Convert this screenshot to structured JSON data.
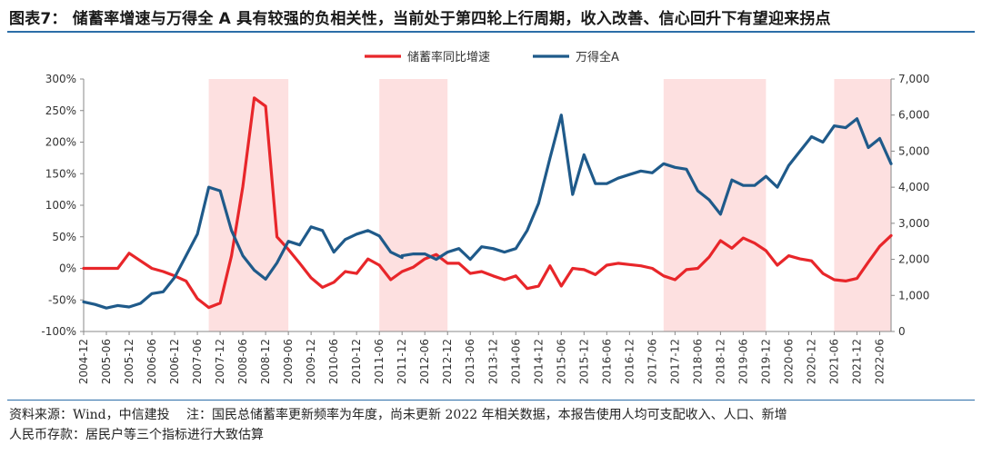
{
  "page": {
    "title": "图表7：  储蓄率增速与万得全 A 具有较强的负相关性，当前处于第四轮上行周期，收入改善、信心回升下有望迎来拐点",
    "source_note_line1": "资料来源：Wind，中信建投　 注：国民总储蓄率更新频率为年度，尚未更新 2022 年相关数据，本报告使用人均可支配收入、人口、新增",
    "source_note_line2": "人民币存款：居民户等三个指标进行大致估算"
  },
  "chart_data": {
    "type": "line",
    "colors": {
      "savings": "#e8262a",
      "wind": "#1f5a8a",
      "band": "#fde0e0"
    },
    "x_tick_labels": [
      "2004-12",
      "2005-06",
      "2005-12",
      "2006-06",
      "2006-12",
      "2007-06",
      "2007-12",
      "2008-06",
      "2008-12",
      "2009-06",
      "2009-12",
      "2010-06",
      "2010-12",
      "2011-06",
      "2011-12",
      "2012-06",
      "2012-12",
      "2013-06",
      "2013-12",
      "2014-06",
      "2014-12",
      "2015-06",
      "2015-12",
      "2016-06",
      "2016-12",
      "2017-06",
      "2017-12",
      "2018-06",
      "2018-12",
      "2019-06",
      "2019-12",
      "2020-06",
      "2020-12",
      "2021-06",
      "2021-12",
      "2022-06"
    ],
    "y_left": {
      "min": -100,
      "max": 300,
      "ticks": [
        "-100%",
        "-50%",
        "0%",
        "50%",
        "100%",
        "150%",
        "200%",
        "250%",
        "300%"
      ]
    },
    "y_right": {
      "min": 0,
      "max": 7000,
      "ticks": [
        "0",
        "1,000",
        "2,000",
        "3,000",
        "4,000",
        "5,000",
        "6,000",
        "7,000"
      ]
    },
    "shaded_periods": [
      {
        "start": "2007-09",
        "end": "2009-06"
      },
      {
        "start": "2011-06",
        "end": "2012-12"
      },
      {
        "start": "2017-09",
        "end": "2019-12"
      },
      {
        "start": "2021-06",
        "end": "2022-09"
      }
    ],
    "series": [
      {
        "name": "储蓄率同比增速",
        "axis": "left",
        "points": [
          [
            "2004-12",
            0
          ],
          [
            "2005-03",
            0
          ],
          [
            "2005-06",
            0
          ],
          [
            "2005-09",
            0
          ],
          [
            "2005-12",
            24
          ],
          [
            "2006-03",
            12
          ],
          [
            "2006-06",
            0
          ],
          [
            "2006-09",
            -5
          ],
          [
            "2006-12",
            -12
          ],
          [
            "2007-03",
            -20
          ],
          [
            "2007-06",
            -48
          ],
          [
            "2007-09",
            -62
          ],
          [
            "2007-12",
            -55
          ],
          [
            "2008-03",
            20
          ],
          [
            "2008-06",
            130
          ],
          [
            "2008-09",
            270
          ],
          [
            "2008-12",
            257
          ],
          [
            "2009-03",
            50
          ],
          [
            "2009-06",
            30
          ],
          [
            "2009-09",
            8
          ],
          [
            "2009-12",
            -15
          ],
          [
            "2010-03",
            -30
          ],
          [
            "2010-06",
            -22
          ],
          [
            "2010-09",
            -5
          ],
          [
            "2010-12",
            -8
          ],
          [
            "2011-03",
            15
          ],
          [
            "2011-06",
            5
          ],
          [
            "2011-09",
            -18
          ],
          [
            "2011-12",
            -5
          ],
          [
            "2012-03",
            2
          ],
          [
            "2012-06",
            15
          ],
          [
            "2012-09",
            22
          ],
          [
            "2012-12",
            8
          ],
          [
            "2013-03",
            8
          ],
          [
            "2013-06",
            -8
          ],
          [
            "2013-09",
            -5
          ],
          [
            "2013-12",
            -12
          ],
          [
            "2014-03",
            -18
          ],
          [
            "2014-06",
            -12
          ],
          [
            "2014-09",
            -32
          ],
          [
            "2014-12",
            -28
          ],
          [
            "2015-03",
            4
          ],
          [
            "2015-06",
            -28
          ],
          [
            "2015-09",
            0
          ],
          [
            "2015-12",
            -2
          ],
          [
            "2016-03",
            -10
          ],
          [
            "2016-06",
            5
          ],
          [
            "2016-09",
            8
          ],
          [
            "2016-12",
            6
          ],
          [
            "2017-03",
            4
          ],
          [
            "2017-06",
            0
          ],
          [
            "2017-09",
            -12
          ],
          [
            "2017-12",
            -18
          ],
          [
            "2018-03",
            -2
          ],
          [
            "2018-06",
            0
          ],
          [
            "2018-09",
            18
          ],
          [
            "2018-12",
            44
          ],
          [
            "2019-03",
            32
          ],
          [
            "2019-06",
            48
          ],
          [
            "2019-09",
            40
          ],
          [
            "2019-12",
            28
          ],
          [
            "2020-03",
            5
          ],
          [
            "2020-06",
            20
          ],
          [
            "2020-09",
            15
          ],
          [
            "2020-12",
            12
          ],
          [
            "2021-03",
            -8
          ],
          [
            "2021-06",
            -18
          ],
          [
            "2021-09",
            -20
          ],
          [
            "2021-12",
            -16
          ],
          [
            "2022-03",
            10
          ],
          [
            "2022-06",
            35
          ],
          [
            "2022-09",
            52
          ]
        ]
      },
      {
        "name": "万得全A",
        "axis": "right",
        "points": [
          [
            "2004-12",
            820
          ],
          [
            "2005-03",
            750
          ],
          [
            "2005-06",
            650
          ],
          [
            "2005-09",
            720
          ],
          [
            "2005-12",
            680
          ],
          [
            "2006-03",
            780
          ],
          [
            "2006-06",
            1050
          ],
          [
            "2006-09",
            1100
          ],
          [
            "2006-12",
            1500
          ],
          [
            "2007-03",
            2100
          ],
          [
            "2007-06",
            2700
          ],
          [
            "2007-09",
            4000
          ],
          [
            "2007-12",
            3900
          ],
          [
            "2008-03",
            2800
          ],
          [
            "2008-06",
            2100
          ],
          [
            "2008-09",
            1700
          ],
          [
            "2008-12",
            1450
          ],
          [
            "2009-03",
            1900
          ],
          [
            "2009-06",
            2500
          ],
          [
            "2009-09",
            2400
          ],
          [
            "2009-12",
            2900
          ],
          [
            "2010-03",
            2800
          ],
          [
            "2010-06",
            2200
          ],
          [
            "2010-09",
            2550
          ],
          [
            "2010-12",
            2700
          ],
          [
            "2011-03",
            2800
          ],
          [
            "2011-06",
            2650
          ],
          [
            "2011-09",
            2200
          ],
          [
            "2011-12",
            2050
          ],
          [
            "2011-12",
            2100
          ],
          [
            "2012-03",
            2150
          ],
          [
            "2012-06",
            2150
          ],
          [
            "2012-09",
            2000
          ],
          [
            "2012-12",
            2200
          ],
          [
            "2013-03",
            2300
          ],
          [
            "2013-06",
            2000
          ],
          [
            "2013-09",
            2350
          ],
          [
            "2013-12",
            2300
          ],
          [
            "2014-03",
            2200
          ],
          [
            "2014-06",
            2300
          ],
          [
            "2014-09",
            2800
          ],
          [
            "2014-12",
            3550
          ],
          [
            "2015-03",
            4800
          ],
          [
            "2015-06",
            6000
          ],
          [
            "2015-09",
            3800
          ],
          [
            "2015-12",
            4900
          ],
          [
            "2016-03",
            4100
          ],
          [
            "2016-06",
            4100
          ],
          [
            "2016-09",
            4250
          ],
          [
            "2016-12",
            4350
          ],
          [
            "2017-03",
            4450
          ],
          [
            "2017-06",
            4400
          ],
          [
            "2017-09",
            4650
          ],
          [
            "2017-12",
            4550
          ],
          [
            "2018-03",
            4500
          ],
          [
            "2018-06",
            3900
          ],
          [
            "2018-09",
            3650
          ],
          [
            "2018-12",
            3250
          ],
          [
            "2019-03",
            4200
          ],
          [
            "2019-06",
            4050
          ],
          [
            "2019-09",
            4050
          ],
          [
            "2019-12",
            4300
          ],
          [
            "2020-03",
            4000
          ],
          [
            "2020-06",
            4600
          ],
          [
            "2020-09",
            5000
          ],
          [
            "2020-12",
            5400
          ],
          [
            "2021-03",
            5250
          ],
          [
            "2021-06",
            5700
          ],
          [
            "2021-09",
            5650
          ],
          [
            "2021-12",
            5900
          ],
          [
            "2022-03",
            5100
          ],
          [
            "2022-06",
            5350
          ],
          [
            "2022-09",
            4650
          ]
        ]
      }
    ]
  }
}
